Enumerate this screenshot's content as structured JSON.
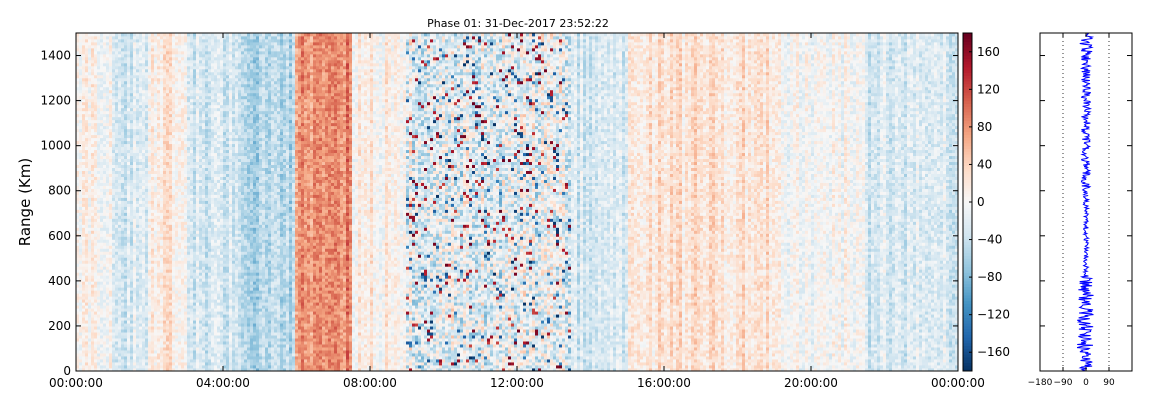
{
  "chart_data": [
    {
      "type": "heatmap",
      "title": "Phase 01: 31-Dec-2017 23:52:22",
      "ylabel": "Range (Km)",
      "xlabel": "",
      "x_ticks": [
        "00:00:00",
        "04:00:00",
        "08:00:00",
        "12:00:00",
        "16:00:00",
        "20:00:00",
        "00:00:00"
      ],
      "x_range_hours": [
        0,
        24
      ],
      "y_ticks": [
        0,
        200,
        400,
        600,
        800,
        1000,
        1200,
        1400
      ],
      "ylim": [
        0,
        1500
      ],
      "colorbar": {
        "colormap": "RdBu_r",
        "range": [
          -180,
          180
        ],
        "ticks": [
          "160",
          "120",
          "80",
          "40",
          "0",
          "−40",
          "−80",
          "−120",
          "−160"
        ]
      },
      "grid": false,
      "column_bias": [
        {
          "x_hours": [
            0,
            1
          ],
          "value": 5
        },
        {
          "x_hours": [
            1,
            2
          ],
          "value": -25
        },
        {
          "x_hours": [
            2,
            3
          ],
          "value": 20
        },
        {
          "x_hours": [
            3,
            4.5
          ],
          "value": -25
        },
        {
          "x_hours": [
            4.5,
            6
          ],
          "value": -55
        },
        {
          "x_hours": [
            6,
            7.5
          ],
          "value": 85
        },
        {
          "x_hours": [
            7.5,
            9
          ],
          "value": 10
        },
        {
          "x_hours": [
            9,
            13.5
          ],
          "value": -15
        },
        {
          "x_hours": [
            13.5,
            15
          ],
          "value": -30
        },
        {
          "x_hours": [
            15,
            19
          ],
          "value": 25
        },
        {
          "x_hours": [
            19,
            21.5
          ],
          "value": 0
        },
        {
          "x_hours": [
            21.5,
            24
          ],
          "value": -25
        }
      ]
    },
    {
      "type": "line",
      "title": "",
      "x_ticks": [
        "−180",
        "−90",
        "0",
        "90"
      ],
      "xlim": [
        -180,
        180
      ],
      "ylim": [
        0,
        1500
      ],
      "vertical_reference_lines": [
        -90,
        90
      ],
      "series_color": "#0000ff",
      "profile_spread": [
        {
          "range_km": [
            0,
            100
          ],
          "spread": 25
        },
        {
          "range_km": [
            100,
            280
          ],
          "spread": 35
        },
        {
          "range_km": [
            280,
            420
          ],
          "spread": 30
        },
        {
          "range_km": [
            420,
            800
          ],
          "spread": 10
        },
        {
          "range_km": [
            800,
            1400
          ],
          "spread": 18
        },
        {
          "range_km": [
            1400,
            1500
          ],
          "spread": 25
        }
      ]
    }
  ]
}
